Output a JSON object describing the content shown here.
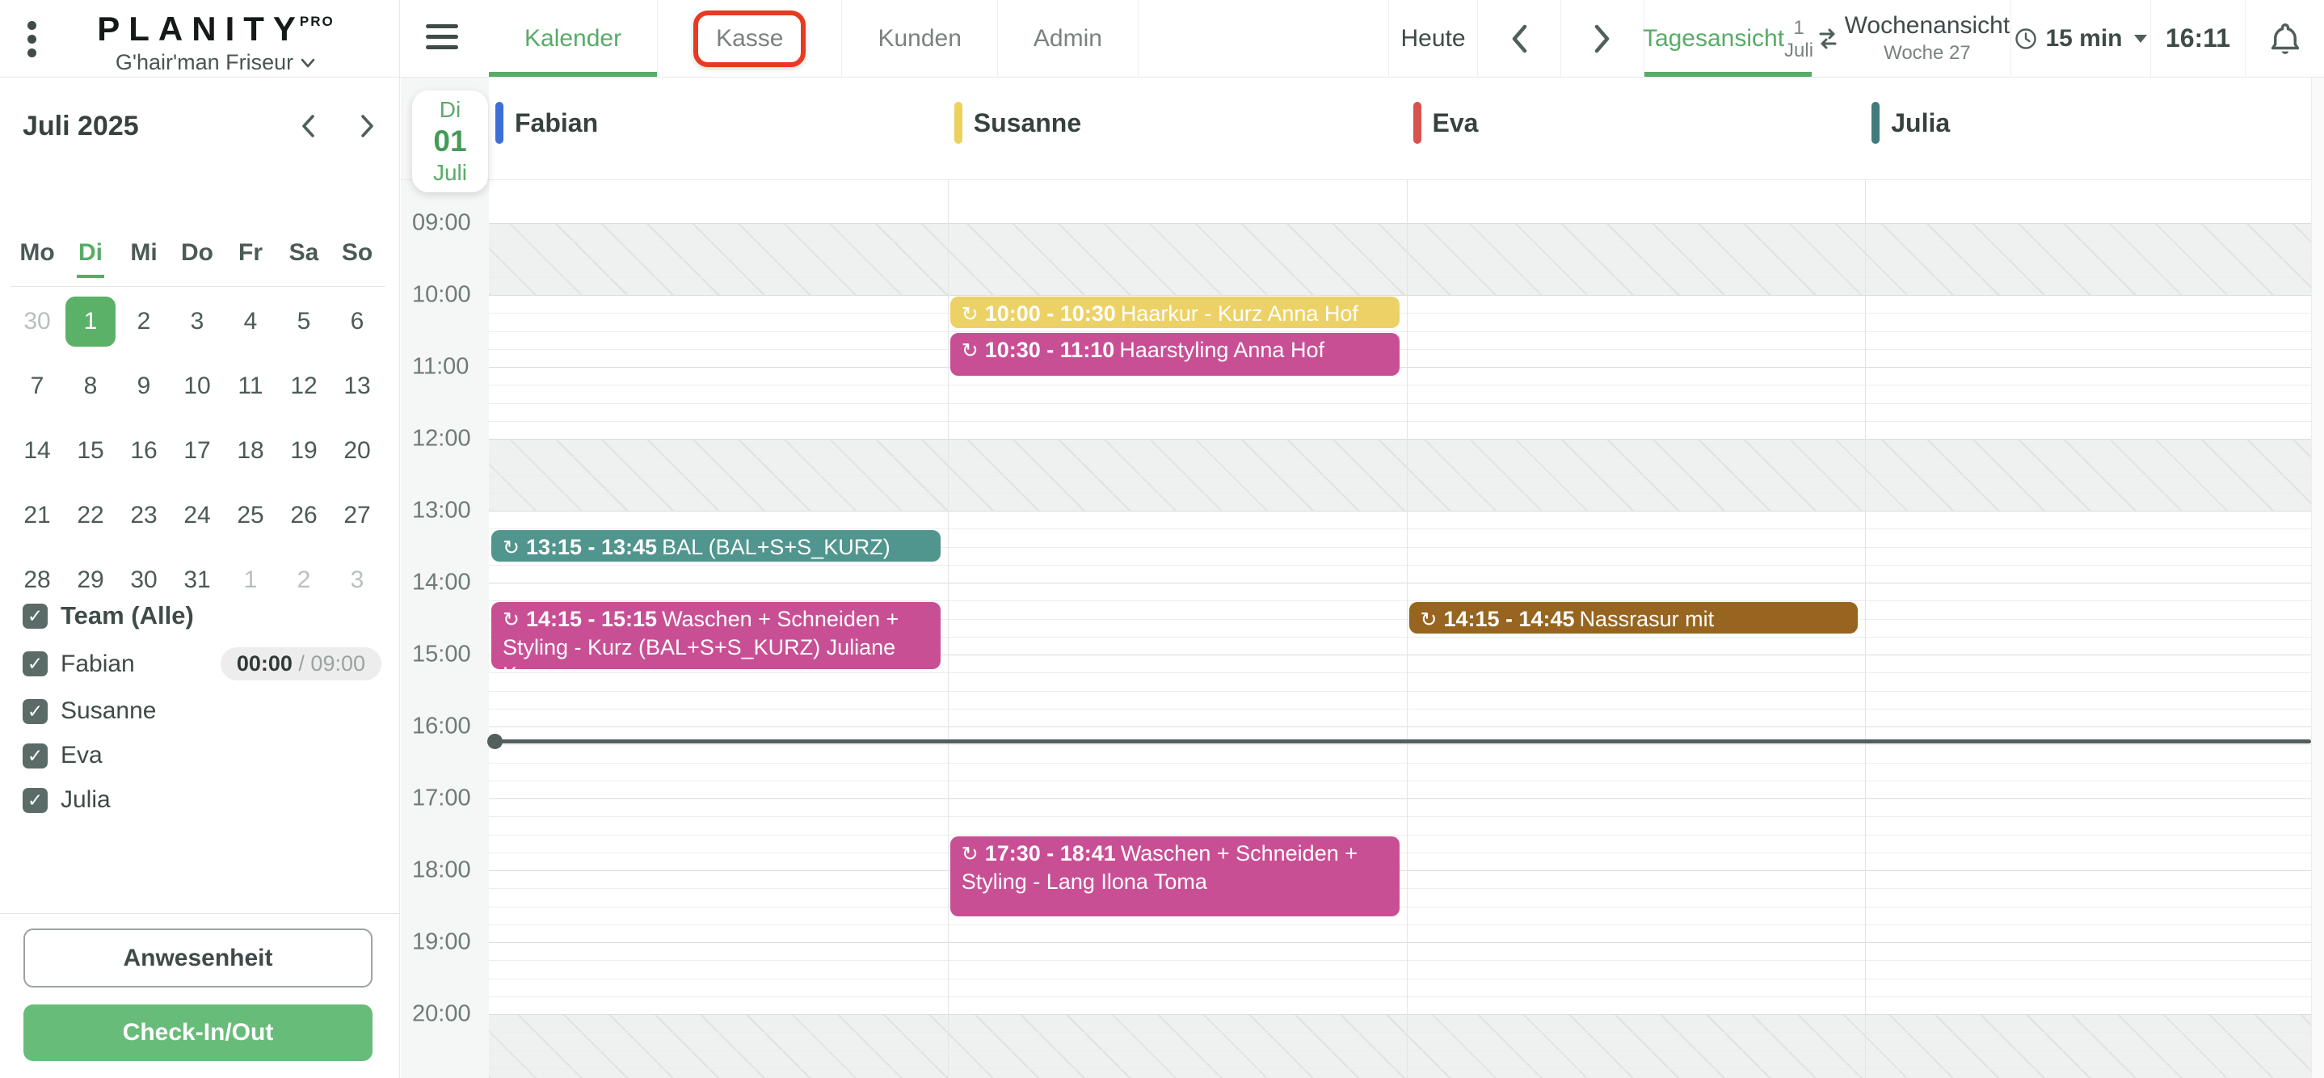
{
  "app": {
    "logo": "PLANITY",
    "logo_badge": "PRO",
    "salon_name": "G'hair'man Friseur"
  },
  "nav": {
    "tabs": [
      {
        "label": "Kalender",
        "active": true,
        "annotated": false
      },
      {
        "label": "Kasse",
        "active": false,
        "annotated": true
      },
      {
        "label": "Kunden",
        "active": false,
        "annotated": false
      },
      {
        "label": "Admin",
        "active": false,
        "annotated": false
      }
    ],
    "today_label": "Heute",
    "day_view": {
      "label": "Tagesansicht",
      "sublabel": "1 Juli",
      "active": true
    },
    "week_view": {
      "label": "Wochenansicht",
      "sublabel": "Woche 27",
      "active": false
    },
    "interval_label": "15 min",
    "clock": "16:11"
  },
  "mini_calendar": {
    "title": "Juli 2025",
    "weekdays": [
      "Mo",
      "Di",
      "Mi",
      "Do",
      "Fr",
      "Sa",
      "So"
    ],
    "active_weekday": "Di",
    "weeks": [
      [
        {
          "day": 30,
          "muted": true
        },
        {
          "day": 1,
          "selected": true
        },
        {
          "day": 2
        },
        {
          "day": 3
        },
        {
          "day": 4
        },
        {
          "day": 5
        },
        {
          "day": 6
        }
      ],
      [
        {
          "day": 7
        },
        {
          "day": 8
        },
        {
          "day": 9
        },
        {
          "day": 10
        },
        {
          "day": 11
        },
        {
          "day": 12
        },
        {
          "day": 13
        }
      ],
      [
        {
          "day": 14
        },
        {
          "day": 15
        },
        {
          "day": 16
        },
        {
          "day": 17
        },
        {
          "day": 18
        },
        {
          "day": 19
        },
        {
          "day": 20
        }
      ],
      [
        {
          "day": 21
        },
        {
          "day": 22
        },
        {
          "day": 23
        },
        {
          "day": 24
        },
        {
          "day": 25
        },
        {
          "day": 26
        },
        {
          "day": 27
        }
      ],
      [
        {
          "day": 28
        },
        {
          "day": 29
        },
        {
          "day": 30
        },
        {
          "day": 31
        },
        {
          "day": 1,
          "muted": true
        },
        {
          "day": 2,
          "muted": true
        },
        {
          "day": 3,
          "muted": true
        }
      ]
    ]
  },
  "team": {
    "group_label": "Team (Alle)",
    "group_checked": true,
    "members": [
      {
        "name": "Fabian",
        "checked": true,
        "time_badge": {
          "elapsed": "00:00",
          "separator": " / ",
          "total": "09:00"
        }
      },
      {
        "name": "Susanne",
        "checked": true
      },
      {
        "name": "Eva",
        "checked": true
      },
      {
        "name": "Julia",
        "checked": true
      }
    ]
  },
  "sidebar_actions": {
    "attendance_label": "Anwesenheit",
    "checkin_label": "Check-In/Out"
  },
  "calendar": {
    "date_badge": {
      "weekday": "Di",
      "day": "01",
      "month": "Juli"
    },
    "columns": [
      {
        "name": "Fabian",
        "color": "#3e6fd9"
      },
      {
        "name": "Susanne",
        "color": "#ecd15c"
      },
      {
        "name": "Eva",
        "color": "#d8534e"
      },
      {
        "name": "Julia",
        "color": "#417c7c"
      }
    ],
    "hour_labels": [
      "09:00",
      "10:00",
      "11:00",
      "12:00",
      "13:00",
      "14:00",
      "15:00",
      "16:00",
      "17:00",
      "18:00",
      "19:00",
      "20:00"
    ],
    "slot_minutes": 15,
    "unavailable_bands": [
      {
        "from": "09:00",
        "to": "10:00"
      },
      {
        "from": "12:00",
        "to": "13:00"
      },
      {
        "from": "20:00",
        "to": "21:00"
      }
    ],
    "events": [
      {
        "column": "Susanne",
        "start": "10:00",
        "end": "10:30",
        "title": "Haarkur - Kurz Anna Hof",
        "color": "#ecd266",
        "recurring": true
      },
      {
        "column": "Susanne",
        "start": "10:30",
        "end": "11:10",
        "title": "Haarstyling Anna Hof",
        "color": "#c94f95",
        "recurring": true
      },
      {
        "column": "Fabian",
        "start": "13:15",
        "end": "13:45",
        "title": "BAL (BAL+S+S_KURZ) Juliane…",
        "color": "#50958e",
        "recurring": true
      },
      {
        "column": "Fabian",
        "start": "14:15",
        "end": "15:15",
        "title": "Waschen + Schneiden + Styling - Kurz (BAL+S+S_KURZ) Juliane Kraus",
        "color": "#c94f95",
        "recurring": true
      },
      {
        "column": "Eva",
        "start": "14:15",
        "end": "14:45",
        "title": "Nassrasur mit Rasiermesser…",
        "color": "#97651f",
        "recurring": true
      },
      {
        "column": "Susanne",
        "start": "17:30",
        "end": "18:41",
        "title": "Waschen + Schneiden + Styling - Lang Ilona Toma",
        "color": "#c94f95",
        "recurring": true
      }
    ],
    "now": "16:11"
  },
  "colors": {
    "accent_green": "#57ac67",
    "button_green": "#68bc79",
    "annotation_red": "#e73a22"
  }
}
